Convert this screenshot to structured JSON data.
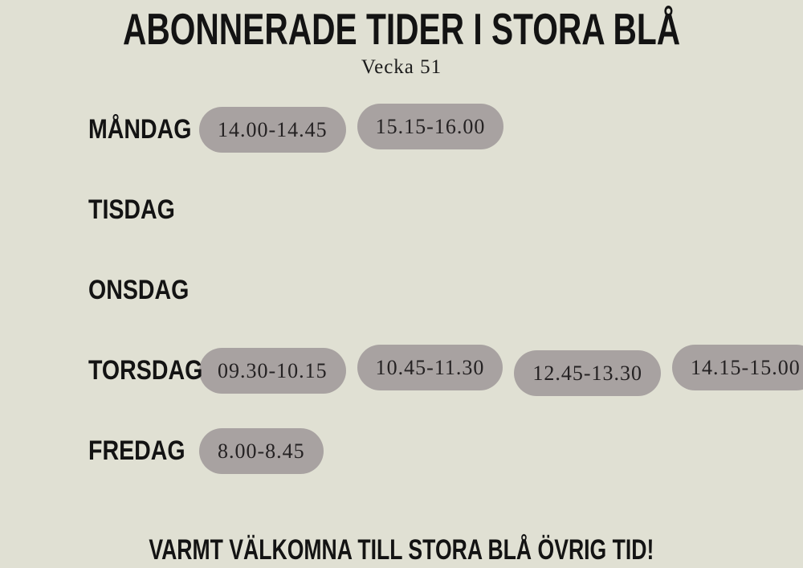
{
  "page": {
    "title": "ABONNERADE TIDER I STORA BLÅ",
    "subtitle": "Vecka 51",
    "footer": "VARMT VÄLKOMNA TILL STORA BLÅ ÖVRIG TID!"
  },
  "colors": {
    "background": "#e0e0d3",
    "pill": "#a8a2a1",
    "text": "#131313"
  },
  "schedule": {
    "week_label": "Vecka 51",
    "days": [
      {
        "label": "MÅNDAG",
        "slots": [
          "14.00-14.45",
          "15.15-16.00"
        ]
      },
      {
        "label": "TISDAG",
        "slots": []
      },
      {
        "label": "ONSDAG",
        "slots": []
      },
      {
        "label": "TORSDAG",
        "slots": [
          "09.30-10.15",
          "10.45-11.30",
          "12.45-13.30",
          "14.15-15.00"
        ]
      },
      {
        "label": "FREDAG",
        "slots": [
          "8.00-8.45"
        ]
      }
    ]
  }
}
